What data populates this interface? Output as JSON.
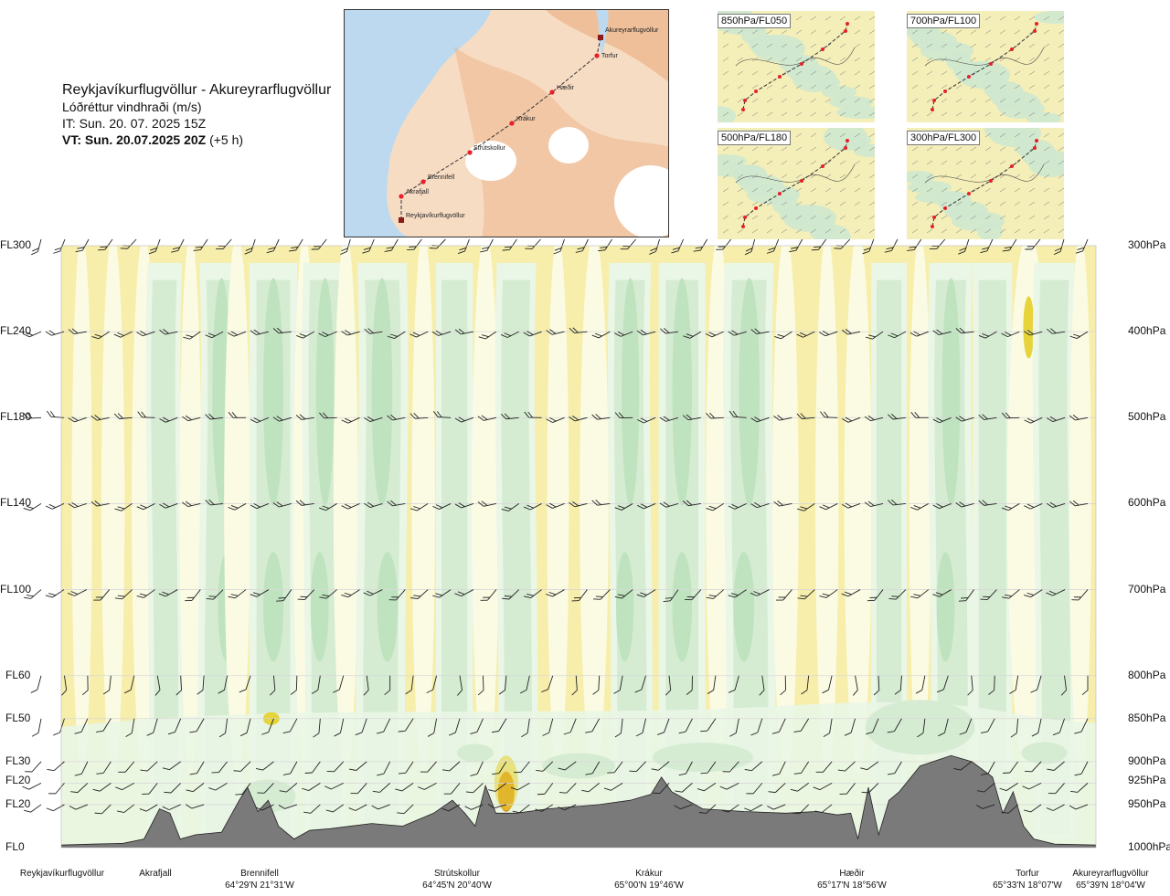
{
  "header": {
    "route": "Reykjavíkurflugvöllur - Akureyrarflugvöllur",
    "parameter": "Lóðréttur vindhraði (m/s)",
    "issue_time": "IT: Sun. 20. 07. 2025 15Z",
    "valid_time": "VT: Sun. 20.07.2025 20Z",
    "valid_offset": "(+5 h)"
  },
  "route_map": {
    "points": [
      "Reykjavíkurflugvöllur",
      "Akrafjall",
      "Brennifell",
      "Strútskollur",
      "Krákur",
      "Hæðir",
      "Torfur",
      "Akureyrarflugvöllur"
    ],
    "colors": {
      "sea": "#bcd9f0",
      "land_low": "#f7dcc4",
      "land_high": "#eaa878",
      "glacier": "#ffffff",
      "route": "#333333",
      "point": "#e8202a"
    }
  },
  "mini_maps": [
    {
      "label": "850hPa/FL050"
    },
    {
      "label": "700hPa/FL100"
    },
    {
      "label": "500hPa/FL180"
    },
    {
      "label": "300hPa/FL300"
    }
  ],
  "chart_data": {
    "type": "cross-section",
    "title": "Lóðréttur vindhraði (m/s)",
    "x_locations": [
      {
        "name": "Reykjavíkurflugvöllur",
        "coord": "",
        "pos": 0.0
      },
      {
        "name": "Akrafjall",
        "coord": "",
        "pos": 0.09
      },
      {
        "name": "Brennifell",
        "coord": "64°29'N 21°31'W",
        "pos": 0.186
      },
      {
        "name": "Strútskollur",
        "coord": "64°45'N 20°40'W",
        "pos": 0.378
      },
      {
        "name": "Krákur",
        "coord": "65°00'N 19°46'W",
        "pos": 0.57
      },
      {
        "name": "Hæðir",
        "coord": "65°17'N 18°56'W",
        "pos": 0.763
      },
      {
        "name": "Torfur",
        "coord": "65°33'N 18°07'W",
        "pos": 0.943
      },
      {
        "name": "Akureyrarflugvöllur",
        "coord": "65°39'N 18°04'W",
        "pos": 1.0
      }
    ],
    "levels": [
      {
        "fl": "FL300",
        "hpa": "300hPa",
        "p": 300
      },
      {
        "fl": "FL240",
        "hpa": "400hPa",
        "p": 400
      },
      {
        "fl": "FL180",
        "hpa": "500hPa",
        "p": 500
      },
      {
        "fl": "FL140",
        "hpa": "600hPa",
        "p": 600
      },
      {
        "fl": "FL100",
        "hpa": "700hPa",
        "p": 700
      },
      {
        "fl": "FL60",
        "hpa": "800hPa",
        "p": 800
      },
      {
        "fl": "FL50",
        "hpa": "850hPa",
        "p": 850
      },
      {
        "fl": "FL30",
        "hpa": "900hPa",
        "p": 900
      },
      {
        "fl": "FL20",
        "hpa": "925hPa",
        "p": 925
      },
      {
        "fl": "FL20",
        "hpa": "950hPa",
        "p": 950
      },
      {
        "fl": "FL0",
        "hpa": "1000hPa",
        "p": 1000
      }
    ],
    "y_range_hpa": [
      300,
      1000
    ],
    "colors": {
      "strong_down": "#bfe3bf",
      "down": "#d5ecd2",
      "weak_down": "#eaf6e6",
      "neutral": "#fbfbe4",
      "up": "#f6eeaa",
      "strong_up": "#e6d43a",
      "very_strong_up": "#d98a1a",
      "terrain": "#7a7a7a"
    },
    "terrain_hpa": [
      {
        "x": 0.0,
        "p": 997
      },
      {
        "x": 0.03,
        "p": 996
      },
      {
        "x": 0.06,
        "p": 995
      },
      {
        "x": 0.08,
        "p": 990
      },
      {
        "x": 0.095,
        "p": 955
      },
      {
        "x": 0.105,
        "p": 960
      },
      {
        "x": 0.115,
        "p": 990
      },
      {
        "x": 0.13,
        "p": 985
      },
      {
        "x": 0.155,
        "p": 982
      },
      {
        "x": 0.172,
        "p": 945
      },
      {
        "x": 0.18,
        "p": 930
      },
      {
        "x": 0.19,
        "p": 958
      },
      {
        "x": 0.2,
        "p": 945
      },
      {
        "x": 0.21,
        "p": 975
      },
      {
        "x": 0.225,
        "p": 990
      },
      {
        "x": 0.24,
        "p": 980
      },
      {
        "x": 0.26,
        "p": 978
      },
      {
        "x": 0.3,
        "p": 972
      },
      {
        "x": 0.33,
        "p": 975
      },
      {
        "x": 0.36,
        "p": 960
      },
      {
        "x": 0.378,
        "p": 945
      },
      {
        "x": 0.39,
        "p": 960
      },
      {
        "x": 0.4,
        "p": 975
      },
      {
        "x": 0.41,
        "p": 928
      },
      {
        "x": 0.42,
        "p": 960
      },
      {
        "x": 0.44,
        "p": 960
      },
      {
        "x": 0.47,
        "p": 955
      },
      {
        "x": 0.52,
        "p": 950
      },
      {
        "x": 0.55,
        "p": 945
      },
      {
        "x": 0.57,
        "p": 938
      },
      {
        "x": 0.58,
        "p": 918
      },
      {
        "x": 0.59,
        "p": 935
      },
      {
        "x": 0.62,
        "p": 955
      },
      {
        "x": 0.66,
        "p": 958
      },
      {
        "x": 0.7,
        "p": 960
      },
      {
        "x": 0.73,
        "p": 958
      },
      {
        "x": 0.75,
        "p": 962
      },
      {
        "x": 0.763,
        "p": 960
      },
      {
        "x": 0.77,
        "p": 990
      },
      {
        "x": 0.78,
        "p": 930
      },
      {
        "x": 0.79,
        "p": 985
      },
      {
        "x": 0.8,
        "p": 945
      },
      {
        "x": 0.81,
        "p": 935
      },
      {
        "x": 0.83,
        "p": 905
      },
      {
        "x": 0.86,
        "p": 893
      },
      {
        "x": 0.88,
        "p": 900
      },
      {
        "x": 0.9,
        "p": 918
      },
      {
        "x": 0.91,
        "p": 960
      },
      {
        "x": 0.92,
        "p": 935
      },
      {
        "x": 0.93,
        "p": 975
      },
      {
        "x": 0.94,
        "p": 990
      },
      {
        "x": 0.96,
        "p": 996
      },
      {
        "x": 1.0,
        "p": 997
      }
    ],
    "columns": [
      {
        "x": 0.02,
        "v": 0.2
      },
      {
        "x": 0.05,
        "v": 0.4
      },
      {
        "x": 0.08,
        "v": 0.5
      },
      {
        "x": 0.1,
        "v": -0.8
      },
      {
        "x": 0.125,
        "v": 0.3
      },
      {
        "x": 0.155,
        "v": -1.6
      },
      {
        "x": 0.17,
        "v": 0.6
      },
      {
        "x": 0.205,
        "v": -1.9
      },
      {
        "x": 0.235,
        "v": 0.3
      },
      {
        "x": 0.255,
        "v": -1.5
      },
      {
        "x": 0.275,
        "v": 0.5
      },
      {
        "x": 0.31,
        "v": -2.0
      },
      {
        "x": 0.35,
        "v": 0.4
      },
      {
        "x": 0.38,
        "v": -1.0
      },
      {
        "x": 0.41,
        "v": 0.7
      },
      {
        "x": 0.44,
        "v": -1.2
      },
      {
        "x": 0.48,
        "v": 0.3
      },
      {
        "x": 0.515,
        "v": 0.8
      },
      {
        "x": 0.55,
        "v": -1.4
      },
      {
        "x": 0.6,
        "v": -1.8
      },
      {
        "x": 0.635,
        "v": 0.5
      },
      {
        "x": 0.665,
        "v": -2.0
      },
      {
        "x": 0.7,
        "v": 0.6
      },
      {
        "x": 0.74,
        "v": 0.4
      },
      {
        "x": 0.77,
        "v": 0.7
      },
      {
        "x": 0.8,
        "v": -0.9
      },
      {
        "x": 0.83,
        "v": 0.3
      },
      {
        "x": 0.86,
        "v": -1.5
      },
      {
        "x": 0.9,
        "v": -1.2
      },
      {
        "x": 0.935,
        "v": 1.8
      },
      {
        "x": 0.96,
        "v": -1.3
      },
      {
        "x": 0.985,
        "v": 0.3
      }
    ]
  }
}
